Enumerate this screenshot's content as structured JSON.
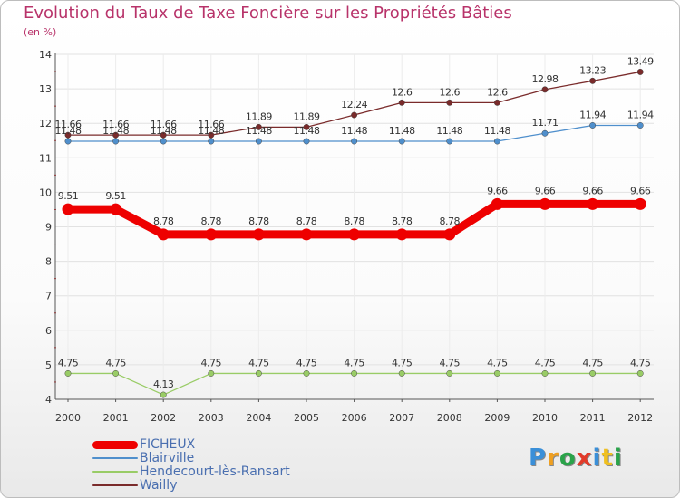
{
  "header": {
    "title": "Evolution du Taux de Taxe Foncière sur les Propriétés Bâties",
    "unit": "(en %)"
  },
  "logo": {
    "text": "Proxiti",
    "colors": [
      "#3a8fd8",
      "#f0a020",
      "#2aa34a",
      "#e23b2a",
      "#3a8fd8",
      "#f0c020",
      "#2aa34a"
    ]
  },
  "chart_data": {
    "type": "line",
    "title": "Evolution du Taux de Taxe Foncière sur les Propriétés Bâties",
    "ylabel": "(en %)",
    "xlabel": "",
    "ylim": [
      4,
      14
    ],
    "yticks": [
      4,
      5,
      6,
      7,
      8,
      9,
      10,
      11,
      12,
      13,
      14
    ],
    "grid": true,
    "legend_position": "bottom-left",
    "categories": [
      "2000",
      "2001",
      "2002",
      "2003",
      "2004",
      "2005",
      "2006",
      "2007",
      "2008",
      "2009",
      "2010",
      "2011",
      "2012"
    ],
    "series": [
      {
        "name": "FICHEUX",
        "color": "#ee0000",
        "weight": "heavy",
        "values": [
          9.51,
          9.51,
          8.78,
          8.78,
          8.78,
          8.78,
          8.78,
          8.78,
          8.78,
          9.66,
          9.66,
          9.66,
          9.66
        ],
        "labels": [
          "9.51",
          "9.51",
          "8.78",
          "8.78",
          "8.78",
          "8.78",
          "8.78",
          "8.78",
          "8.78",
          "9.66",
          "9.66",
          "9.66",
          "9.66"
        ]
      },
      {
        "name": "Blairville",
        "color": "#4f8fcc",
        "weight": "light",
        "values": [
          11.48,
          11.48,
          11.48,
          11.48,
          11.48,
          11.48,
          11.48,
          11.48,
          11.48,
          11.48,
          11.71,
          11.94,
          11.94
        ],
        "labels": [
          "11.48",
          "11.48",
          "11.48",
          "11.48",
          "11.48",
          "11.48",
          "11.48",
          "11.48",
          "11.48",
          "11.48",
          "11.71",
          "11.94",
          "11.94"
        ]
      },
      {
        "name": "Hendecourt-lès-Ransart",
        "color": "#99cc66",
        "weight": "light",
        "values": [
          4.75,
          4.75,
          4.13,
          4.75,
          4.75,
          4.75,
          4.75,
          4.75,
          4.75,
          4.75,
          4.75,
          4.75,
          4.75
        ],
        "labels": [
          "4.75",
          "4.75",
          "4.13",
          "4.75",
          "4.75",
          "4.75",
          "4.75",
          "4.75",
          "4.75",
          "4.75",
          "4.75",
          "4.75",
          "4.75"
        ]
      },
      {
        "name": "Wailly",
        "color": "#7a2b2b",
        "weight": "light",
        "values": [
          11.66,
          11.66,
          11.66,
          11.66,
          11.89,
          11.89,
          12.24,
          12.6,
          12.6,
          12.6,
          12.98,
          13.23,
          13.49
        ],
        "labels": [
          "11.66",
          "11.66",
          "11.66",
          "11.66",
          "11.89",
          "11.89",
          "12.24",
          "12.6",
          "12.6",
          "12.6",
          "12.98",
          "13.23",
          "13.49"
        ]
      }
    ]
  }
}
